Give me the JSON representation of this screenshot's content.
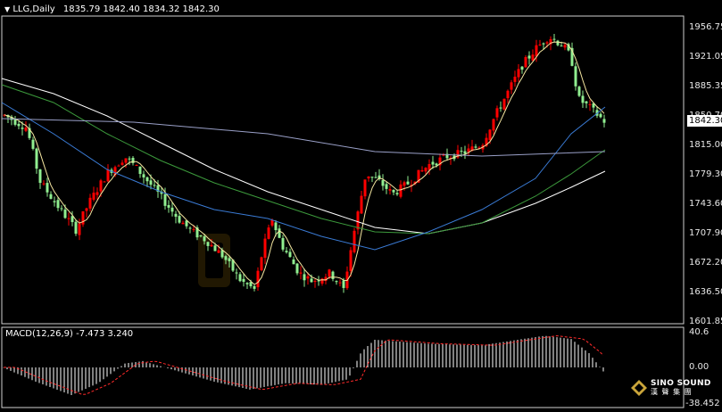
{
  "window": {
    "symbol_label": "LLG,Daily",
    "ohlc": "1835.79 1842.40 1834.32 1842.30",
    "menu_icon": "triangle-down-icon"
  },
  "price_axis": {
    "ticks": [
      "1956.75",
      "1921.05",
      "1885.35",
      "1850.70",
      "1815.00",
      "1779.30",
      "1743.60",
      "1707.90",
      "1672.20",
      "1636.50",
      "1601.85"
    ],
    "current_price": "1842.30"
  },
  "macd": {
    "label": "MACD(12,26,9) -7.473 3.240",
    "ticks": [
      "40.6",
      "0.00",
      "-38.452"
    ]
  },
  "branding": {
    "name": "SINO SOUND",
    "sub": "漢 聲 集 團",
    "watermark": "Gold"
  },
  "colors": {
    "bull_candle": "#ff0000",
    "bear_candle": "#90ee90",
    "ma_fast": "#f5e6a0",
    "ma_mid": "#3a7bd5",
    "ma_green": "#3c9a3c",
    "ma_slow": "#ffffff",
    "macd_hist": "#ffffff",
    "macd_signal": "#ff2a2a"
  }
}
